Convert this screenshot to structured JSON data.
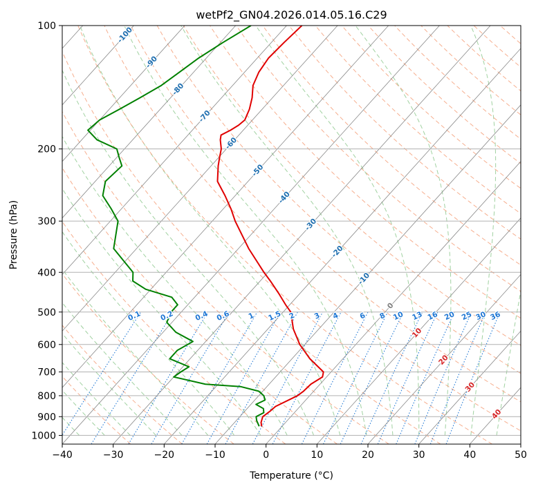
{
  "chart_data": {
    "type": "line",
    "title": "wetPf2_GN04.2026.014.05.16.C29",
    "xlabel": "Temperature (°C)",
    "ylabel": "Pressure (hPa)",
    "xlim": [
      -40,
      50
    ],
    "ylim": [
      1050,
      100
    ],
    "y_scale": "log",
    "skew": "skew-T log-P",
    "grid": true,
    "x_ticks": [
      -40,
      -30,
      -20,
      -10,
      0,
      10,
      20,
      30,
      40,
      50
    ],
    "y_ticks": [
      100,
      200,
      300,
      400,
      500,
      600,
      700,
      800,
      900,
      1000
    ],
    "isotherm_labels": [
      -100,
      -90,
      -80,
      -70,
      -60,
      -50,
      -40,
      -30,
      -20,
      -10,
      0,
      10,
      20,
      30,
      40
    ],
    "mixing_ratio_labels": [
      "0.1",
      "0.2",
      "0.4",
      "0.6",
      "1",
      "1.5",
      "2",
      "3",
      "4",
      "6",
      "8",
      "10",
      "13",
      "16",
      "20",
      "25",
      "30",
      "36"
    ],
    "mixing_ratio_values": [
      0.1,
      0.2,
      0.4,
      0.6,
      1,
      1.5,
      2,
      3,
      4,
      6,
      8,
      10,
      13,
      16,
      20,
      25,
      30,
      36
    ],
    "colors": {
      "temperature": "#e00000",
      "dewpoint": "#008000",
      "dry_adiabat": "#f5a07a",
      "moist_adiabat": "#8fc98f",
      "mixing_ratio": "#1f77d4",
      "isotherm": "#888888",
      "grid": "#b0b0b0",
      "isotherm_label_cold": "#1f6fb0",
      "isotherm_label_warm": "#d62728",
      "isotherm_label_zero": "#808080"
    },
    "series": [
      {
        "key": "temperature",
        "p": [
          100,
          110,
          120,
          130,
          140,
          150,
          160,
          170,
          175,
          180,
          185,
          190,
          200,
          210,
          220,
          240,
          260,
          280,
          300,
          350,
          400,
          420,
          450,
          480,
          500,
          550,
          600,
          650,
          700,
          720,
          750,
          780,
          800,
          850,
          870,
          900,
          930,
          950
        ],
        "t": [
          -67,
          -67.5,
          -67.8,
          -67.2,
          -66,
          -64,
          -62.5,
          -61.5,
          -61.8,
          -62.5,
          -63.5,
          -62.8,
          -61,
          -59.8,
          -58.6,
          -56,
          -52,
          -48.5,
          -45.5,
          -38,
          -30.8,
          -28,
          -24.2,
          -20.8,
          -18.5,
          -15,
          -11,
          -6.5,
          -1.5,
          -0.8,
          -1.8,
          -2,
          -2.4,
          -4.8,
          -5,
          -5.5,
          -4.8,
          -4
        ]
      },
      {
        "key": "dewpoint",
        "p": [
          100,
          110,
          120,
          140,
          150,
          160,
          170,
          180,
          190,
          200,
          210,
          220,
          240,
          260,
          280,
          300,
          350,
          400,
          420,
          440,
          460,
          480,
          500,
          530,
          560,
          590,
          620,
          650,
          680,
          700,
          720,
          750,
          760,
          780,
          800,
          820,
          840,
          860,
          880,
          900,
          920,
          950
        ],
        "t": [
          -77,
          -79.5,
          -81.5,
          -84,
          -86,
          -88,
          -90,
          -90.5,
          -87,
          -81.5,
          -79.5,
          -77.5,
          -78,
          -76,
          -72,
          -68.5,
          -64.5,
          -56.5,
          -55,
          -51,
          -44.5,
          -42,
          -42,
          -41,
          -37.5,
          -32.5,
          -34,
          -34,
          -28.8,
          -29.5,
          -30,
          -22.5,
          -15.2,
          -10.8,
          -9,
          -8,
          -9,
          -6.8,
          -6,
          -6.8,
          -6,
          -4.5
        ]
      }
    ]
  }
}
